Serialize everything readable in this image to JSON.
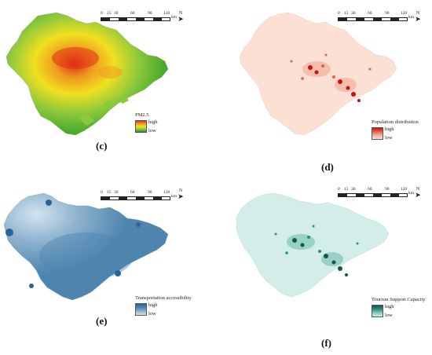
{
  "scale_bar": {
    "ticks": [
      "0",
      "15",
      "30",
      "60",
      "90",
      "120"
    ],
    "unit": "km"
  },
  "north_label": "N",
  "legend_high": "high",
  "legend_low": "low",
  "panels": [
    {
      "label": "(c)",
      "legend_title": "PM2.5",
      "colors": [
        "#1f9a1f",
        "#8cc83c",
        "#f0e020",
        "#f09a20",
        "#e03018"
      ]
    },
    {
      "label": "(d)",
      "legend_title": "Population distribution",
      "colors": [
        "#fbe0d3",
        "#f5b5a0",
        "#e8604a",
        "#cc1010"
      ]
    },
    {
      "label": "(e)",
      "legend_title": "Transportation accessibility",
      "colors": [
        "#d3e3ee",
        "#8fb3cf",
        "#4e85b0",
        "#2a6595"
      ]
    },
    {
      "label": "(f)",
      "legend_title": "Tourism Support Capacity",
      "colors": [
        "#d3ede8",
        "#8cc9bd",
        "#2f8c7a",
        "#0e5a4c"
      ]
    }
  ]
}
